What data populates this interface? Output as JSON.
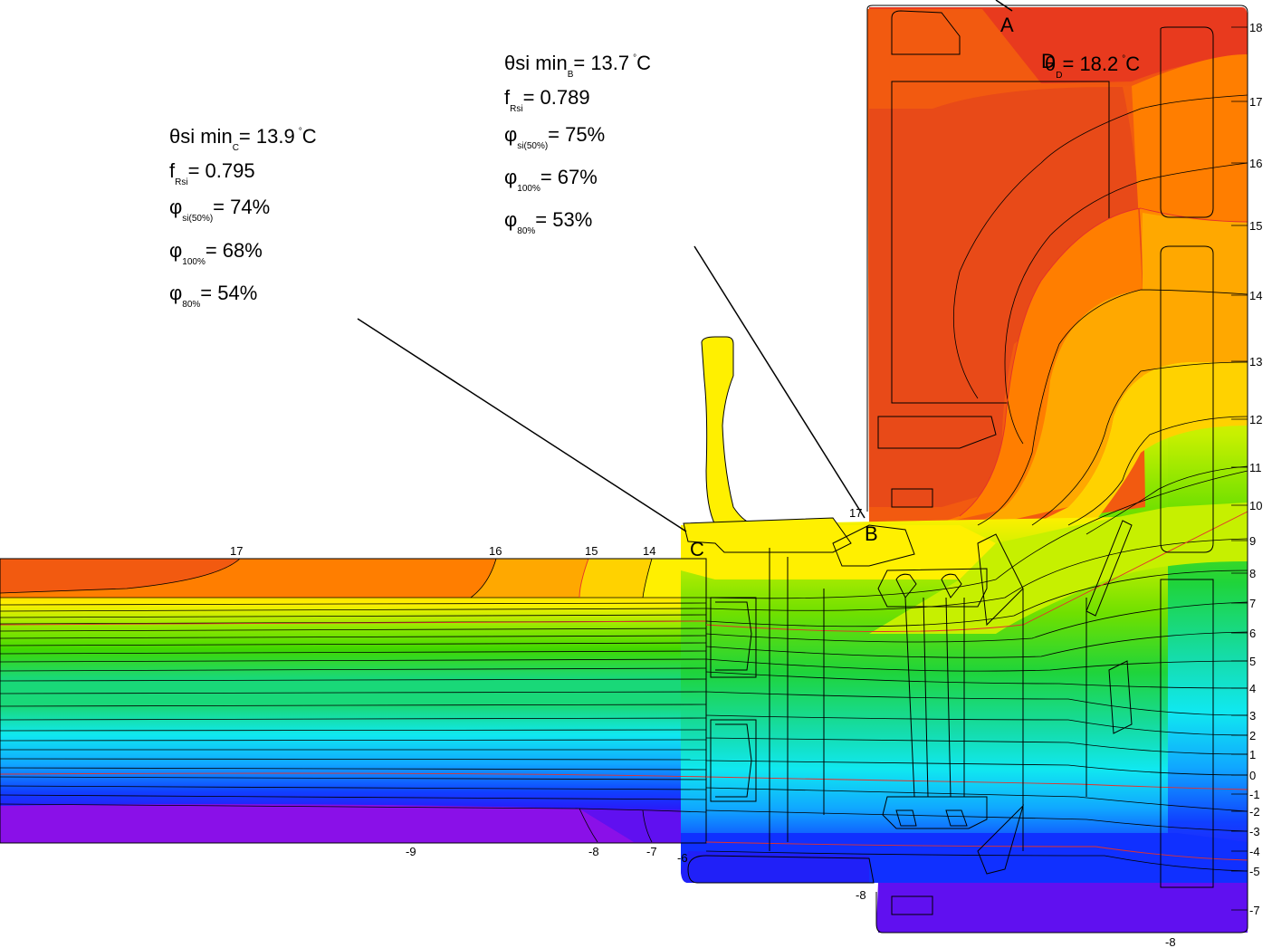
{
  "annotation_C": {
    "theta_label": "θsi min",
    "theta_sub": "C",
    "theta_value": "= 13.9",
    "deg": "°",
    "theta_unit": "C",
    "f_label": "f",
    "f_sub": "Rsi",
    "f_value": "= 0.795",
    "phi1_label": "φ",
    "phi1_sub": "si(50%)",
    "phi1_value": "= 74%",
    "phi2_label": "φ",
    "phi2_sub": "100%",
    "phi2_value": "= 68%",
    "phi3_label": "φ",
    "phi3_sub": "80%",
    "phi3_value": "= 54%"
  },
  "annotation_B": {
    "theta_label": "θsi min",
    "theta_sub": "B",
    "theta_value": "= 13.7",
    "deg": "°",
    "theta_unit": "C",
    "f_label": "f",
    "f_sub": "Rsi",
    "f_value": "= 0.789",
    "phi1_label": "φ",
    "phi1_sub": "si(50%)",
    "phi1_value": "= 75%",
    "phi2_label": "φ",
    "phi2_sub": "100%",
    "phi2_value": "= 67%",
    "phi3_label": "φ",
    "phi3_sub": "80%",
    "phi3_value": "= 53%"
  },
  "annotation_D": {
    "theta_label": "θ",
    "theta_sub": "D",
    "theta_value": "= 18.2",
    "deg": "°",
    "theta_unit": "C"
  },
  "points": {
    "A": "A",
    "B": "B",
    "C": "C",
    "D": "D"
  },
  "scale_right": [
    "18",
    "17",
    "16",
    "15",
    "14",
    "13",
    "12",
    "11",
    "10",
    "9",
    "8",
    "7",
    "6",
    "5",
    "4",
    "3",
    "2",
    "1",
    "0",
    "-1",
    "-2",
    "-3",
    "-4",
    "-5",
    "-7"
  ],
  "isotherm_labels_top": [
    "17",
    "16",
    "15",
    "14"
  ],
  "isotherm_labels_bottom": [
    "-9",
    "-8",
    "-7",
    "-6",
    "-8",
    "-8"
  ],
  "label_17_near_B": "17",
  "colors": {
    "t18": "#e83a1e",
    "t17": "#f25a10",
    "t16": "#ff7e00",
    "t15": "#ffa800",
    "t14": "#ffd200",
    "t13": "#fff000",
    "t12": "#e9f500",
    "t11": "#c6f000",
    "t10": "#9eea00",
    "t9": "#6fe000",
    "t8": "#3fd800",
    "t7": "#1fd43a",
    "t6": "#19d878",
    "t5": "#15dca8",
    "t4": "#10e0d0",
    "t3": "#10e8f0",
    "t2": "#10d0ff",
    "t1": "#10a8ff",
    "t0": "#1080ff",
    "tm1": "#1060ff",
    "tm2": "#1040ff",
    "tm3": "#1020ff",
    "tm5": "#3010f8",
    "tm7": "#6010f0",
    "tm9": "#8a10e8"
  }
}
